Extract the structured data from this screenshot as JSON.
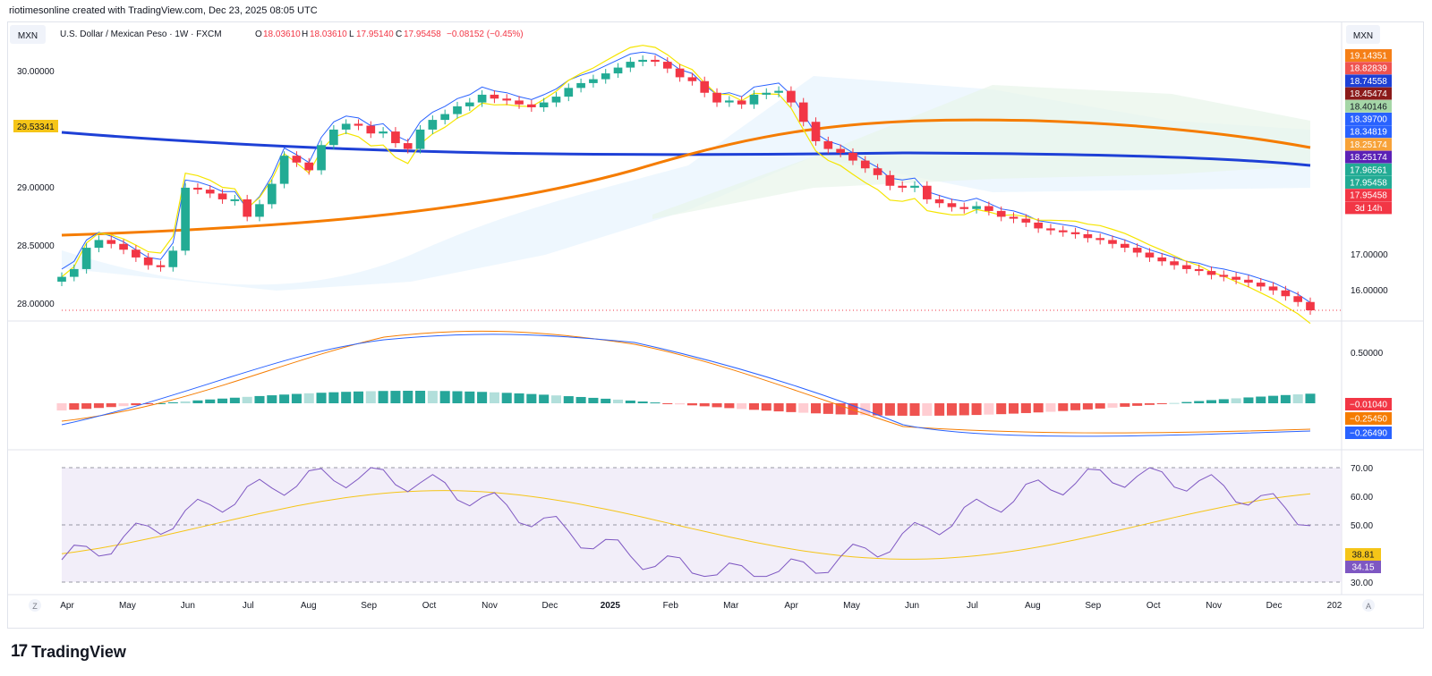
{
  "header": {
    "attribution": "riotimesonline created with TradingView.com, Dec 23, 2025 08:05 UTC"
  },
  "brand": {
    "mark": "17",
    "name": "TradingView"
  },
  "chart_data": {
    "type": "candlestick",
    "currency_left": "MXN",
    "currency_right": "MXN",
    "title": "U.S. Dollar / Mexican Peso · 1W · FXCM",
    "ohlc": {
      "open_label": "O",
      "open": "18.03610",
      "high_label": "H",
      "high": "18.03610",
      "low_label": "L",
      "low": "17.95140",
      "close_label": "C",
      "close": "17.95458",
      "change": "−0.08152 (−0.45%)"
    },
    "left_axis": {
      "ticks": [
        "30.00000",
        "29.00000",
        "28.50000",
        "28.00000"
      ],
      "highlight": "29.53341"
    },
    "right_axis": {
      "ticks": [
        "17.00000",
        "16.00000"
      ],
      "labels": [
        {
          "text": "19.14351",
          "bg": "#f57f17"
        },
        {
          "text": "18.82839",
          "bg": "#ef5350"
        },
        {
          "text": "18.74558",
          "bg": "#1e40d6"
        },
        {
          "text": "18.45474",
          "bg": "#8b1a1a"
        },
        {
          "text": "18.40146",
          "bg": "#a5d6a7"
        },
        {
          "text": "18.39700",
          "bg": "#2962ff"
        },
        {
          "text": "18.34819",
          "bg": "#2962ff"
        },
        {
          "text": "18.25174",
          "bg": "#f7a239"
        },
        {
          "text": "18.25174",
          "bg": "#5b21b6"
        },
        {
          "text": "17.96561",
          "bg": "#22ab94"
        },
        {
          "text": "17.95458",
          "bg": "#22ab94"
        },
        {
          "text": "17.95458",
          "bg": "#f23645"
        }
      ],
      "countdown": "3d 14h"
    },
    "x_labels": [
      "Apr",
      "May",
      "Jun",
      "Jul",
      "Aug",
      "Sep",
      "Oct",
      "Nov",
      "Dec",
      "2025",
      "Feb",
      "Mar",
      "Apr",
      "May",
      "Jun",
      "Jul",
      "Aug",
      "Sep",
      "Oct",
      "Nov",
      "Dec",
      "202"
    ],
    "candles_close": [
      18.3,
      18.38,
      18.6,
      18.68,
      18.64,
      18.58,
      18.5,
      18.42,
      18.4,
      18.57,
      19.22,
      19.2,
      19.16,
      19.1,
      19.1,
      18.92,
      19.05,
      19.26,
      19.55,
      19.48,
      19.4,
      19.66,
      19.82,
      19.88,
      19.86,
      19.78,
      19.8,
      19.68,
      19.62,
      19.82,
      19.92,
      19.98,
      20.06,
      20.1,
      20.18,
      20.14,
      20.12,
      20.08,
      20.05,
      20.1,
      20.16,
      20.25,
      20.3,
      20.34,
      20.4,
      20.46,
      20.52,
      20.54,
      20.52,
      20.45,
      20.36,
      20.32,
      20.2,
      20.1,
      20.12,
      20.08,
      20.18,
      20.2,
      20.22,
      20.1,
      19.9,
      19.7,
      19.62,
      19.58,
      19.5,
      19.42,
      19.35,
      19.24,
      19.22,
      19.24,
      19.1,
      19.06,
      19.02,
      19.0,
      19.03,
      18.98,
      18.92,
      18.9,
      18.86,
      18.8,
      18.78,
      18.76,
      18.74,
      18.7,
      18.68,
      18.64,
      18.6,
      18.55,
      18.5,
      18.46,
      18.42,
      18.38,
      18.36,
      18.32,
      18.3,
      18.27,
      18.24,
      18.2,
      18.16,
      18.1,
      18.04,
      17.95458
    ],
    "macd": {
      "ticks": [
        "0.50000"
      ],
      "labels": [
        {
          "text": "−0.01040",
          "bg": "#f23645"
        },
        {
          "text": "−0.25450",
          "bg": "#f57c00"
        },
        {
          "text": "−0.26490",
          "bg": "#2962ff"
        }
      ]
    },
    "rsi": {
      "ticks": [
        "70.00",
        "60.00",
        "50.00",
        "30.00"
      ],
      "labels": [
        {
          "text": "38.81",
          "bg": "#f5c518"
        },
        {
          "text": "34.15",
          "bg": "#7e57c2"
        }
      ],
      "upper": 70,
      "lower": 30
    },
    "footer": {
      "left_btn": "Z",
      "right_btn": "A"
    }
  }
}
